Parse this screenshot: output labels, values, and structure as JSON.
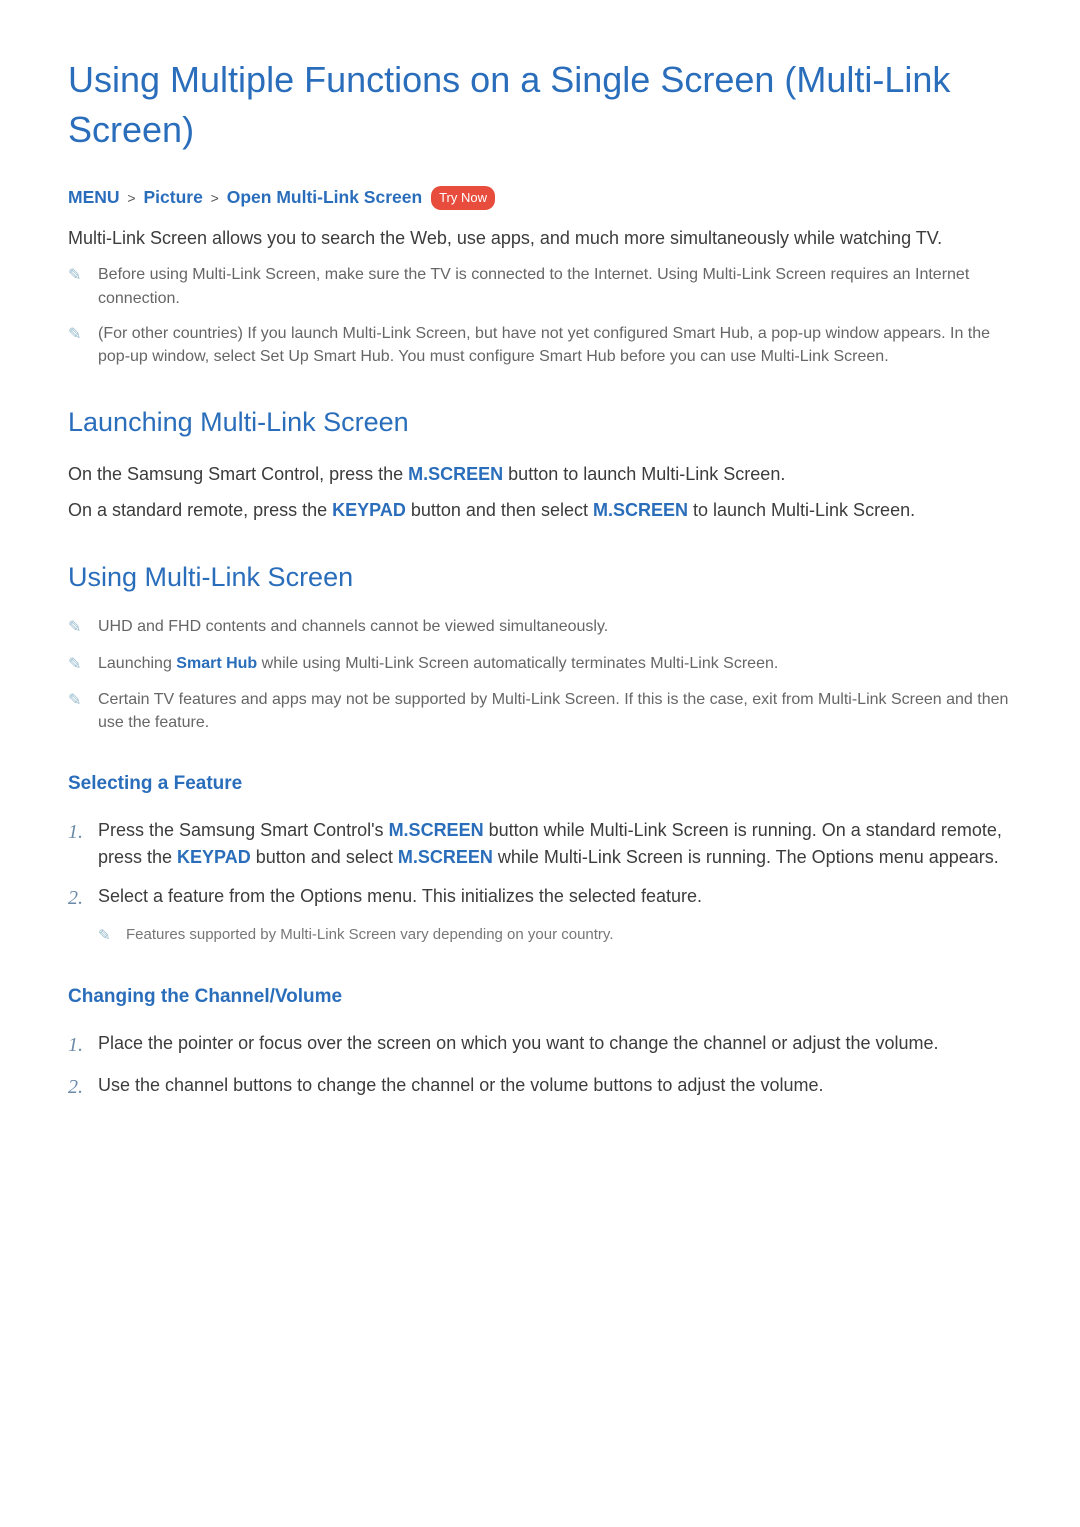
{
  "colors": {
    "accent": "#2a6ebb",
    "badge_bg": "#e74c3c",
    "badge_fg": "#ffffff",
    "body_text": "#3c3c3c",
    "note_text": "#666666",
    "note_icon": "#6a9db8",
    "ol_num": "#6a8aa8",
    "bg": "#ffffff"
  },
  "title": "Using Multiple Functions on a Single Screen (Multi-Link Screen)",
  "breadcrumb": {
    "items": [
      "MENU",
      "Picture",
      "Open Multi-Link Screen"
    ],
    "sep": ">",
    "badge": "Try Now"
  },
  "intro": "Multi-Link Screen allows you to search the Web, use apps, and much more simultaneously while watching TV.",
  "intro_notes": [
    "Before using Multi-Link Screen, make sure the TV is connected to the Internet. Using Multi-Link Screen requires an Internet connection.",
    "(For other countries) If you launch Multi-Link Screen, but have not yet configured Smart Hub, a pop-up window appears. In the pop-up window, select Set Up Smart Hub. You must configure Smart Hub before you can use Multi-Link Screen."
  ],
  "section_launch": {
    "heading": "Launching Multi-Link Screen",
    "p1": {
      "pre": "On the Samsung Smart Control, press the ",
      "btn1": "M.SCREEN",
      "post": " button to launch Multi-Link Screen."
    },
    "p2": {
      "pre": "On a standard remote, press the ",
      "btn1": "KEYPAD",
      "mid": " button and then select ",
      "btn2": "M.SCREEN",
      "post": " to launch Multi-Link Screen."
    }
  },
  "section_using": {
    "heading": "Using Multi-Link Screen",
    "notes": {
      "n0": "UHD and FHD contents and channels cannot be viewed simultaneously.",
      "n1": {
        "pre": "Launching ",
        "link": "Smart Hub",
        "post": " while using Multi-Link Screen automatically terminates Multi-Link Screen."
      },
      "n2": "Certain TV features and apps may not be supported by Multi-Link Screen. If this is the case, exit from Multi-Link Screen and then use the feature."
    }
  },
  "section_selecting": {
    "heading": "Selecting a Feature",
    "steps": {
      "s1": {
        "num": "1.",
        "pre": "Press the Samsung Smart Control's ",
        "btn1": "M.SCREEN",
        "mid1": " button while Multi-Link Screen is running. On a standard remote, press the ",
        "btn2": "KEYPAD",
        "mid2": " button and select ",
        "btn3": "M.SCREEN",
        "post": " while Multi-Link Screen is running. The Options menu appears."
      },
      "s2": {
        "num": "2.",
        "text": "Select a feature from the Options menu. This initializes the selected feature.",
        "note": "Features supported by Multi-Link Screen vary depending on your country."
      }
    }
  },
  "section_channel": {
    "heading": "Changing the Channel/Volume",
    "steps": {
      "s1": {
        "num": "1.",
        "text": "Place the pointer or focus over the screen on which you want to change the channel or adjust the volume."
      },
      "s2": {
        "num": "2.",
        "text": "Use the channel buttons to change the channel or the volume buttons to adjust the volume."
      }
    }
  }
}
